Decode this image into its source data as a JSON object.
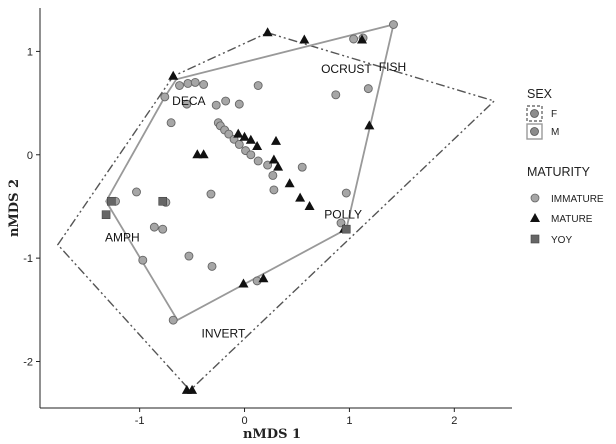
{
  "chart_data": {
    "type": "scatter",
    "xlabel": "nMDS 1",
    "ylabel": "nMDS 2",
    "xlim": [
      -1.95,
      2.55
    ],
    "ylim": [
      -2.45,
      1.42
    ],
    "x_ticks": [
      -1,
      0,
      1,
      2
    ],
    "y_ticks": [
      -2,
      -1,
      0,
      1
    ],
    "grid": false,
    "legend_position": "right",
    "legend": {
      "sex": {
        "title": "SEX",
        "items": [
          {
            "label": "F",
            "line": "dashed"
          },
          {
            "label": "M",
            "line": "solid"
          }
        ]
      },
      "maturity": {
        "title": "MATURITY",
        "items": [
          {
            "label": "IMMATURE",
            "shape": "circle",
            "color": "#a6a6a6"
          },
          {
            "label": "MATURE",
            "shape": "triangle",
            "color": "#111111"
          },
          {
            "label": "YOY",
            "shape": "square",
            "color": "#666666"
          }
        ]
      }
    },
    "hulls": [
      {
        "group": "F",
        "line": "dashed",
        "color": "#555555",
        "points": [
          [
            -1.78,
            -0.87
          ],
          [
            -0.68,
            0.76
          ],
          [
            0.22,
            1.18
          ],
          [
            2.38,
            0.52
          ],
          [
            -0.52,
            -2.28
          ]
        ]
      },
      {
        "group": "M",
        "line": "solid",
        "color": "#999999",
        "points": [
          [
            -0.76,
            0.56
          ],
          [
            -0.65,
            0.73
          ],
          [
            1.42,
            1.26
          ],
          [
            0.97,
            -0.72
          ],
          [
            -0.64,
            -1.6
          ],
          [
            -1.32,
            -0.45
          ]
        ]
      }
    ],
    "annotations": [
      {
        "text": "DECA",
        "x": -0.69,
        "y": 0.52
      },
      {
        "text": "OCRUST",
        "x": 0.73,
        "y": 0.83
      },
      {
        "text": "FISH",
        "x": 1.28,
        "y": 0.85
      },
      {
        "text": "AMPH",
        "x": -1.33,
        "y": -0.8
      },
      {
        "text": "POLLY",
        "x": 0.76,
        "y": -0.58
      },
      {
        "text": "INVERT",
        "x": -0.41,
        "y": -1.73
      }
    ],
    "series": [
      {
        "name": "IMMATURE",
        "shape": "circle",
        "x": [
          -0.76,
          -0.62,
          -0.54,
          -0.47,
          -0.39,
          -0.55,
          -0.18,
          0.13,
          1.04,
          1.13,
          1.42,
          0.87,
          1.18,
          -0.7,
          -0.27,
          -0.05,
          -0.25,
          -0.23,
          -0.19,
          -0.15,
          -0.1,
          -0.05,
          0.01,
          0.06,
          0.13,
          0.22,
          0.27,
          0.55,
          0.28,
          -0.32,
          -0.75,
          -1.03,
          -1.23,
          -0.86,
          -0.97,
          -0.53,
          -0.31,
          0.12,
          0.92,
          0.97,
          -0.68,
          -0.78
        ],
        "y": [
          0.56,
          0.67,
          0.69,
          0.7,
          0.68,
          0.49,
          0.52,
          0.67,
          1.12,
          1.13,
          1.26,
          0.58,
          0.64,
          0.31,
          0.48,
          0.49,
          0.31,
          0.28,
          0.24,
          0.2,
          0.15,
          0.1,
          0.04,
          0.0,
          -0.06,
          -0.1,
          -0.2,
          -0.12,
          -0.34,
          -0.38,
          -0.46,
          -0.36,
          -0.45,
          -0.7,
          -1.02,
          -0.98,
          -1.08,
          -1.22,
          -0.66,
          -0.37,
          -1.6,
          -0.72
        ]
      },
      {
        "name": "MATURE",
        "shape": "triangle",
        "x": [
          -0.68,
          -0.39,
          0.22,
          0.57,
          1.12,
          1.19,
          -0.45,
          -0.06,
          0.0,
          0.06,
          0.12,
          0.3,
          0.28,
          0.32,
          0.43,
          0.53,
          0.62,
          0.95,
          -0.01,
          0.18,
          -0.55,
          -0.5
        ],
        "y": [
          0.76,
          0.0,
          1.18,
          1.11,
          1.11,
          0.28,
          0.0,
          0.2,
          0.17,
          0.14,
          0.08,
          0.13,
          -0.05,
          -0.12,
          -0.28,
          -0.42,
          -0.5,
          -0.72,
          -1.25,
          -1.2,
          -2.28,
          -2.28
        ]
      },
      {
        "name": "YOY",
        "shape": "square",
        "x": [
          -1.32,
          -1.27,
          -0.78,
          0.97
        ],
        "y": [
          -0.58,
          -0.45,
          -0.45,
          -0.72
        ]
      }
    ]
  }
}
